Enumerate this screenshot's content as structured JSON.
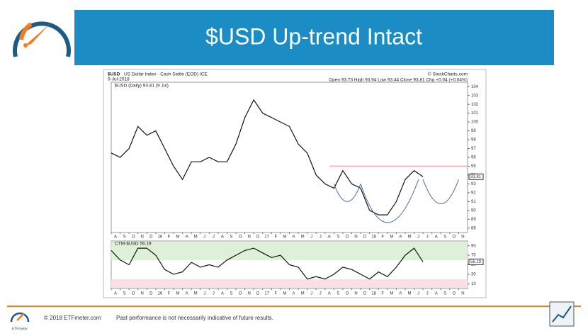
{
  "slide": {
    "title": "$USD Up-trend Intact",
    "copyright": "© 2018 ETFmeter.com",
    "disclaimer": "Past performance is not necessarily indicative of future results.",
    "logo_text": "ETFmeter"
  },
  "chart_data": [
    {
      "type": "line",
      "symbol": "$USD",
      "description": "US Dollar Index - Cash Settle (EOD) ICE",
      "date": "9-Jul-2018",
      "quote": "Open 93.73  High 93.94  Low 93.44  Close 93.81  Chg +0.04 (+0.04%)",
      "source": "© StockCharts.com",
      "legend": "$USD (Daily) 93.81 (9 Jul)",
      "x": [
        0,
        1,
        2,
        3,
        4,
        5,
        6,
        7,
        8,
        9,
        10,
        11,
        12,
        13,
        14,
        15,
        16,
        17,
        18,
        19,
        20,
        21,
        22,
        23,
        24,
        25,
        26,
        27,
        28,
        29,
        30,
        31,
        32,
        33,
        34,
        35
      ],
      "series": [
        {
          "name": "$USD",
          "color": "#111111",
          "values": [
            96.5,
            96,
            97,
            99.5,
            98.5,
            99,
            97,
            95,
            93.5,
            95.5,
            95.5,
            96,
            95.5,
            95.5,
            97.5,
            100.5,
            102.5,
            101,
            100.5,
            100,
            99.5,
            97.5,
            96.5,
            94,
            93,
            92.5,
            94.5,
            93,
            92.5,
            90,
            89.5,
            89.5,
            91,
            93.5,
            94.5,
            93.81
          ]
        }
      ],
      "xlim": [
        0,
        40
      ],
      "xticks": [
        {
          "value": 0,
          "label": "A"
        },
        {
          "value": 1,
          "label": "S"
        },
        {
          "value": 2,
          "label": "O"
        },
        {
          "value": 3,
          "label": "N"
        },
        {
          "value": 4,
          "label": "D"
        },
        {
          "value": 5,
          "label": "16"
        },
        {
          "value": 6,
          "label": "F"
        },
        {
          "value": 7,
          "label": "M"
        },
        {
          "value": 8,
          "label": "A"
        },
        {
          "value": 9,
          "label": "M"
        },
        {
          "value": 10,
          "label": "J"
        },
        {
          "value": 11,
          "label": "J"
        },
        {
          "value": 12,
          "label": "A"
        },
        {
          "value": 13,
          "label": "S"
        },
        {
          "value": 14,
          "label": "O"
        },
        {
          "value": 15,
          "label": "N"
        },
        {
          "value": 16,
          "label": "D"
        },
        {
          "value": 17,
          "label": "17"
        },
        {
          "value": 18,
          "label": "F"
        },
        {
          "value": 19,
          "label": "M"
        },
        {
          "value": 20,
          "label": "A"
        },
        {
          "value": 21,
          "label": "M"
        },
        {
          "value": 22,
          "label": "J"
        },
        {
          "value": 23,
          "label": "J"
        },
        {
          "value": 24,
          "label": "A"
        },
        {
          "value": 25,
          "label": "S"
        },
        {
          "value": 26,
          "label": "O"
        },
        {
          "value": 27,
          "label": "N"
        },
        {
          "value": 28,
          "label": "D"
        },
        {
          "value": 29,
          "label": "18"
        },
        {
          "value": 30,
          "label": "F"
        },
        {
          "value": 31,
          "label": "M"
        },
        {
          "value": 32,
          "label": "A"
        },
        {
          "value": 33,
          "label": "M"
        },
        {
          "value": 34,
          "label": "J"
        },
        {
          "value": 35,
          "label": "J"
        },
        {
          "value": 36,
          "label": "A"
        },
        {
          "value": 37,
          "label": "S"
        },
        {
          "value": 38,
          "label": "O"
        },
        {
          "value": 39,
          "label": "N"
        }
      ],
      "ylim": [
        87.5,
        104.5
      ],
      "yticks": [
        88,
        89,
        90,
        91,
        92,
        93,
        94,
        95,
        96,
        97,
        98,
        99,
        100,
        101,
        102,
        103,
        104
      ]
    },
    {
      "type": "line",
      "legend": "CTM-$USD 56.19",
      "x": [
        0,
        1,
        2,
        3,
        4,
        5,
        6,
        7,
        8,
        9,
        10,
        11,
        12,
        13,
        14,
        15,
        16,
        17,
        18,
        19,
        20,
        21,
        22,
        23,
        24,
        25,
        26,
        27,
        28,
        29,
        30,
        31,
        32,
        33,
        34,
        35
      ],
      "series": [
        {
          "name": "CTM-$USD",
          "color": "#111111",
          "values": [
            80,
            60,
            50,
            85,
            85,
            70,
            40,
            30,
            35,
            55,
            45,
            50,
            45,
            60,
            70,
            80,
            85,
            75,
            65,
            70,
            50,
            45,
            20,
            25,
            20,
            30,
            45,
            40,
            30,
            20,
            35,
            25,
            45,
            70,
            85,
            56.19
          ]
        }
      ],
      "xlim": [
        0,
        40
      ],
      "ylim": [
        0,
        100
      ],
      "yticks": [
        10,
        30,
        50,
        70,
        90
      ]
    }
  ]
}
